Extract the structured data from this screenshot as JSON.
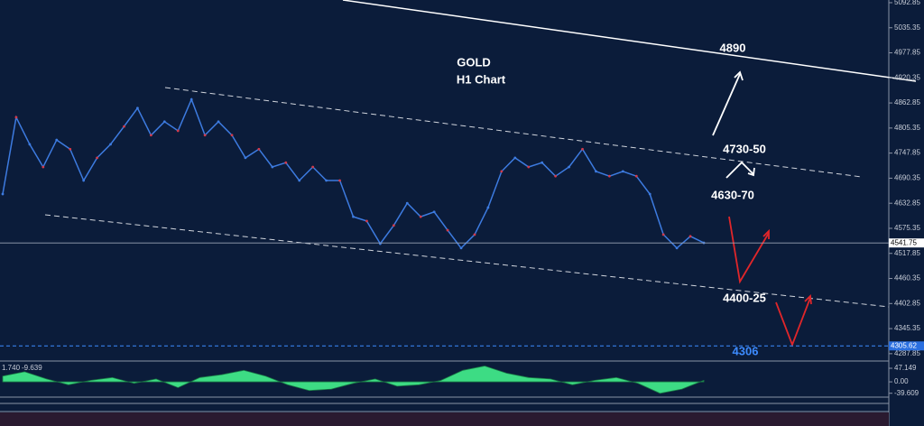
{
  "chart_data": [
    {
      "type": "line",
      "title": "GOLD",
      "subtitle": "H1 Chart",
      "values": [
        4654,
        4830,
        4768,
        4716,
        4778,
        4757,
        4685,
        4737,
        4768,
        4809,
        4851,
        4789,
        4820,
        4799,
        4871,
        4789,
        4820,
        4789,
        4737,
        4757,
        4716,
        4726,
        4685,
        4716,
        4685,
        4685,
        4602,
        4592,
        4540,
        4582,
        4633,
        4602,
        4613,
        4571,
        4530,
        4561,
        4623,
        4706,
        4737,
        4716,
        4726,
        4695,
        4716,
        4757,
        4706,
        4695,
        4706,
        4695,
        4654,
        4561,
        4530,
        4557,
        4542
      ],
      "color": "#3d7be0",
      "ylim": [
        4271,
        5099
      ],
      "yticks": [
        5092.85,
        5035.35,
        4977.85,
        4920.35,
        4862.85,
        4805.35,
        4747.85,
        4690.35,
        4632.85,
        4575.35,
        4517.85,
        4460.35,
        4402.85,
        4345.35,
        4287.85
      ],
      "current_price": 4541.75,
      "level_price": 4305.62,
      "annotations": [
        "4890",
        "4730-50",
        "4630-70",
        "4400-25",
        "4306"
      ]
    },
    {
      "type": "area",
      "header": [
        "1.740",
        "-9.639"
      ],
      "values": [
        20,
        35,
        10,
        -10,
        5,
        15,
        -5,
        10,
        -20,
        15,
        25,
        40,
        20,
        -10,
        -30,
        -25,
        -5,
        10,
        -15,
        -10,
        5,
        40,
        55,
        30,
        15,
        10,
        -10,
        5,
        15,
        -5,
        -40,
        -25,
        5
      ],
      "color": "#3ddc84",
      "ylim": [
        -53,
        66
      ],
      "yticks": [
        47.149,
        {
          "value": 0,
          "label": "0.00"
        },
        -39.609
      ]
    }
  ]
}
